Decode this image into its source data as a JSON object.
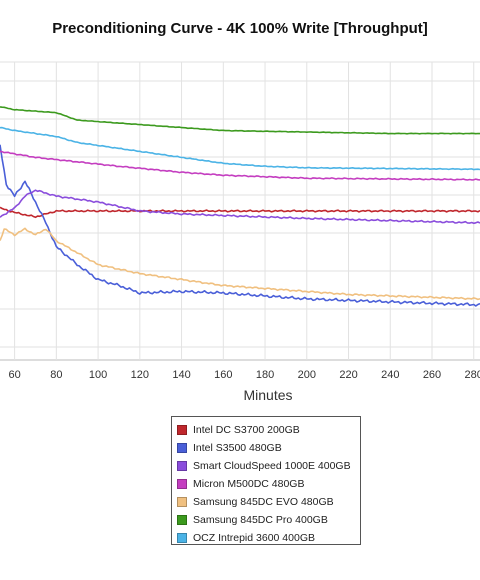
{
  "chart_data": {
    "type": "line",
    "title": "Preconditioning Curve - 4K 100% Write [Throughput]",
    "xlabel": "Minutes",
    "ylabel": "",
    "x_ticks": [
      60,
      80,
      100,
      120,
      140,
      160,
      180,
      200,
      220,
      240,
      260,
      280
    ],
    "xlim": [
      53,
      283
    ],
    "grid": true,
    "legend_position": "bottom-center",
    "series": [
      {
        "name": "Intel DC S3700 200GB",
        "color": "#c0272d",
        "noise": 0.06,
        "points": [
          [
            53,
            0.49
          ],
          [
            60,
            0.505
          ],
          [
            70,
            0.52
          ],
          [
            80,
            0.5
          ],
          [
            90,
            0.5
          ],
          [
            120,
            0.5
          ],
          [
            200,
            0.5
          ],
          [
            283,
            0.5
          ]
        ]
      },
      {
        "name": "Intel S3500 480GB",
        "color": "#4a5fd8",
        "noise": 0.1,
        "points": [
          [
            53,
            0.28
          ],
          [
            56,
            0.41
          ],
          [
            60,
            0.45
          ],
          [
            65,
            0.4
          ],
          [
            70,
            0.47
          ],
          [
            75,
            0.54
          ],
          [
            80,
            0.62
          ],
          [
            90,
            0.68
          ],
          [
            100,
            0.73
          ],
          [
            110,
            0.75
          ],
          [
            120,
            0.775
          ],
          [
            140,
            0.77
          ],
          [
            160,
            0.775
          ],
          [
            180,
            0.785
          ],
          [
            200,
            0.795
          ],
          [
            240,
            0.805
          ],
          [
            283,
            0.815
          ]
        ]
      },
      {
        "name": "Smart CloudSpeed 1000E 400GB",
        "color": "#8a4ddc",
        "noise": 0.06,
        "points": [
          [
            53,
            0.52
          ],
          [
            60,
            0.49
          ],
          [
            65,
            0.45
          ],
          [
            70,
            0.43
          ],
          [
            75,
            0.44
          ],
          [
            80,
            0.45
          ],
          [
            100,
            0.47
          ],
          [
            120,
            0.5
          ],
          [
            140,
            0.51
          ],
          [
            160,
            0.515
          ],
          [
            200,
            0.525
          ],
          [
            283,
            0.54
          ]
        ]
      },
      {
        "name": "Micron M500DC 480GB",
        "color": "#c43ec0",
        "noise": 0.04,
        "points": [
          [
            53,
            0.3
          ],
          [
            70,
            0.32
          ],
          [
            90,
            0.335
          ],
          [
            110,
            0.35
          ],
          [
            140,
            0.37
          ],
          [
            160,
            0.38
          ],
          [
            200,
            0.39
          ],
          [
            283,
            0.395
          ]
        ]
      },
      {
        "name": "Samsung 845DC EVO 480GB",
        "color": "#f0c080",
        "noise": 0.06,
        "points": [
          [
            53,
            0.6
          ],
          [
            55,
            0.56
          ],
          [
            60,
            0.58
          ],
          [
            65,
            0.56
          ],
          [
            70,
            0.58
          ],
          [
            75,
            0.56
          ],
          [
            80,
            0.6
          ],
          [
            90,
            0.64
          ],
          [
            100,
            0.68
          ],
          [
            120,
            0.71
          ],
          [
            140,
            0.73
          ],
          [
            160,
            0.75
          ],
          [
            180,
            0.76
          ],
          [
            200,
            0.77
          ],
          [
            220,
            0.78
          ],
          [
            240,
            0.785
          ],
          [
            283,
            0.795
          ]
        ]
      },
      {
        "name": "Samsung 845DC Pro 400GB",
        "color": "#3c9a1e",
        "noise": 0.02,
        "points": [
          [
            53,
            0.15
          ],
          [
            60,
            0.16
          ],
          [
            80,
            0.17
          ],
          [
            90,
            0.195
          ],
          [
            100,
            0.2
          ],
          [
            120,
            0.21
          ],
          [
            140,
            0.22
          ],
          [
            160,
            0.23
          ],
          [
            200,
            0.235
          ],
          [
            240,
            0.24
          ],
          [
            283,
            0.24
          ]
        ]
      },
      {
        "name": "OCZ Intrepid 3600 400GB",
        "color": "#4bb3e6",
        "noise": 0.03,
        "points": [
          [
            53,
            0.22
          ],
          [
            60,
            0.23
          ],
          [
            70,
            0.24
          ],
          [
            80,
            0.25
          ],
          [
            90,
            0.27
          ],
          [
            100,
            0.28
          ],
          [
            120,
            0.3
          ],
          [
            140,
            0.32
          ],
          [
            160,
            0.34
          ],
          [
            180,
            0.35
          ],
          [
            200,
            0.355
          ],
          [
            283,
            0.36
          ]
        ]
      }
    ]
  }
}
